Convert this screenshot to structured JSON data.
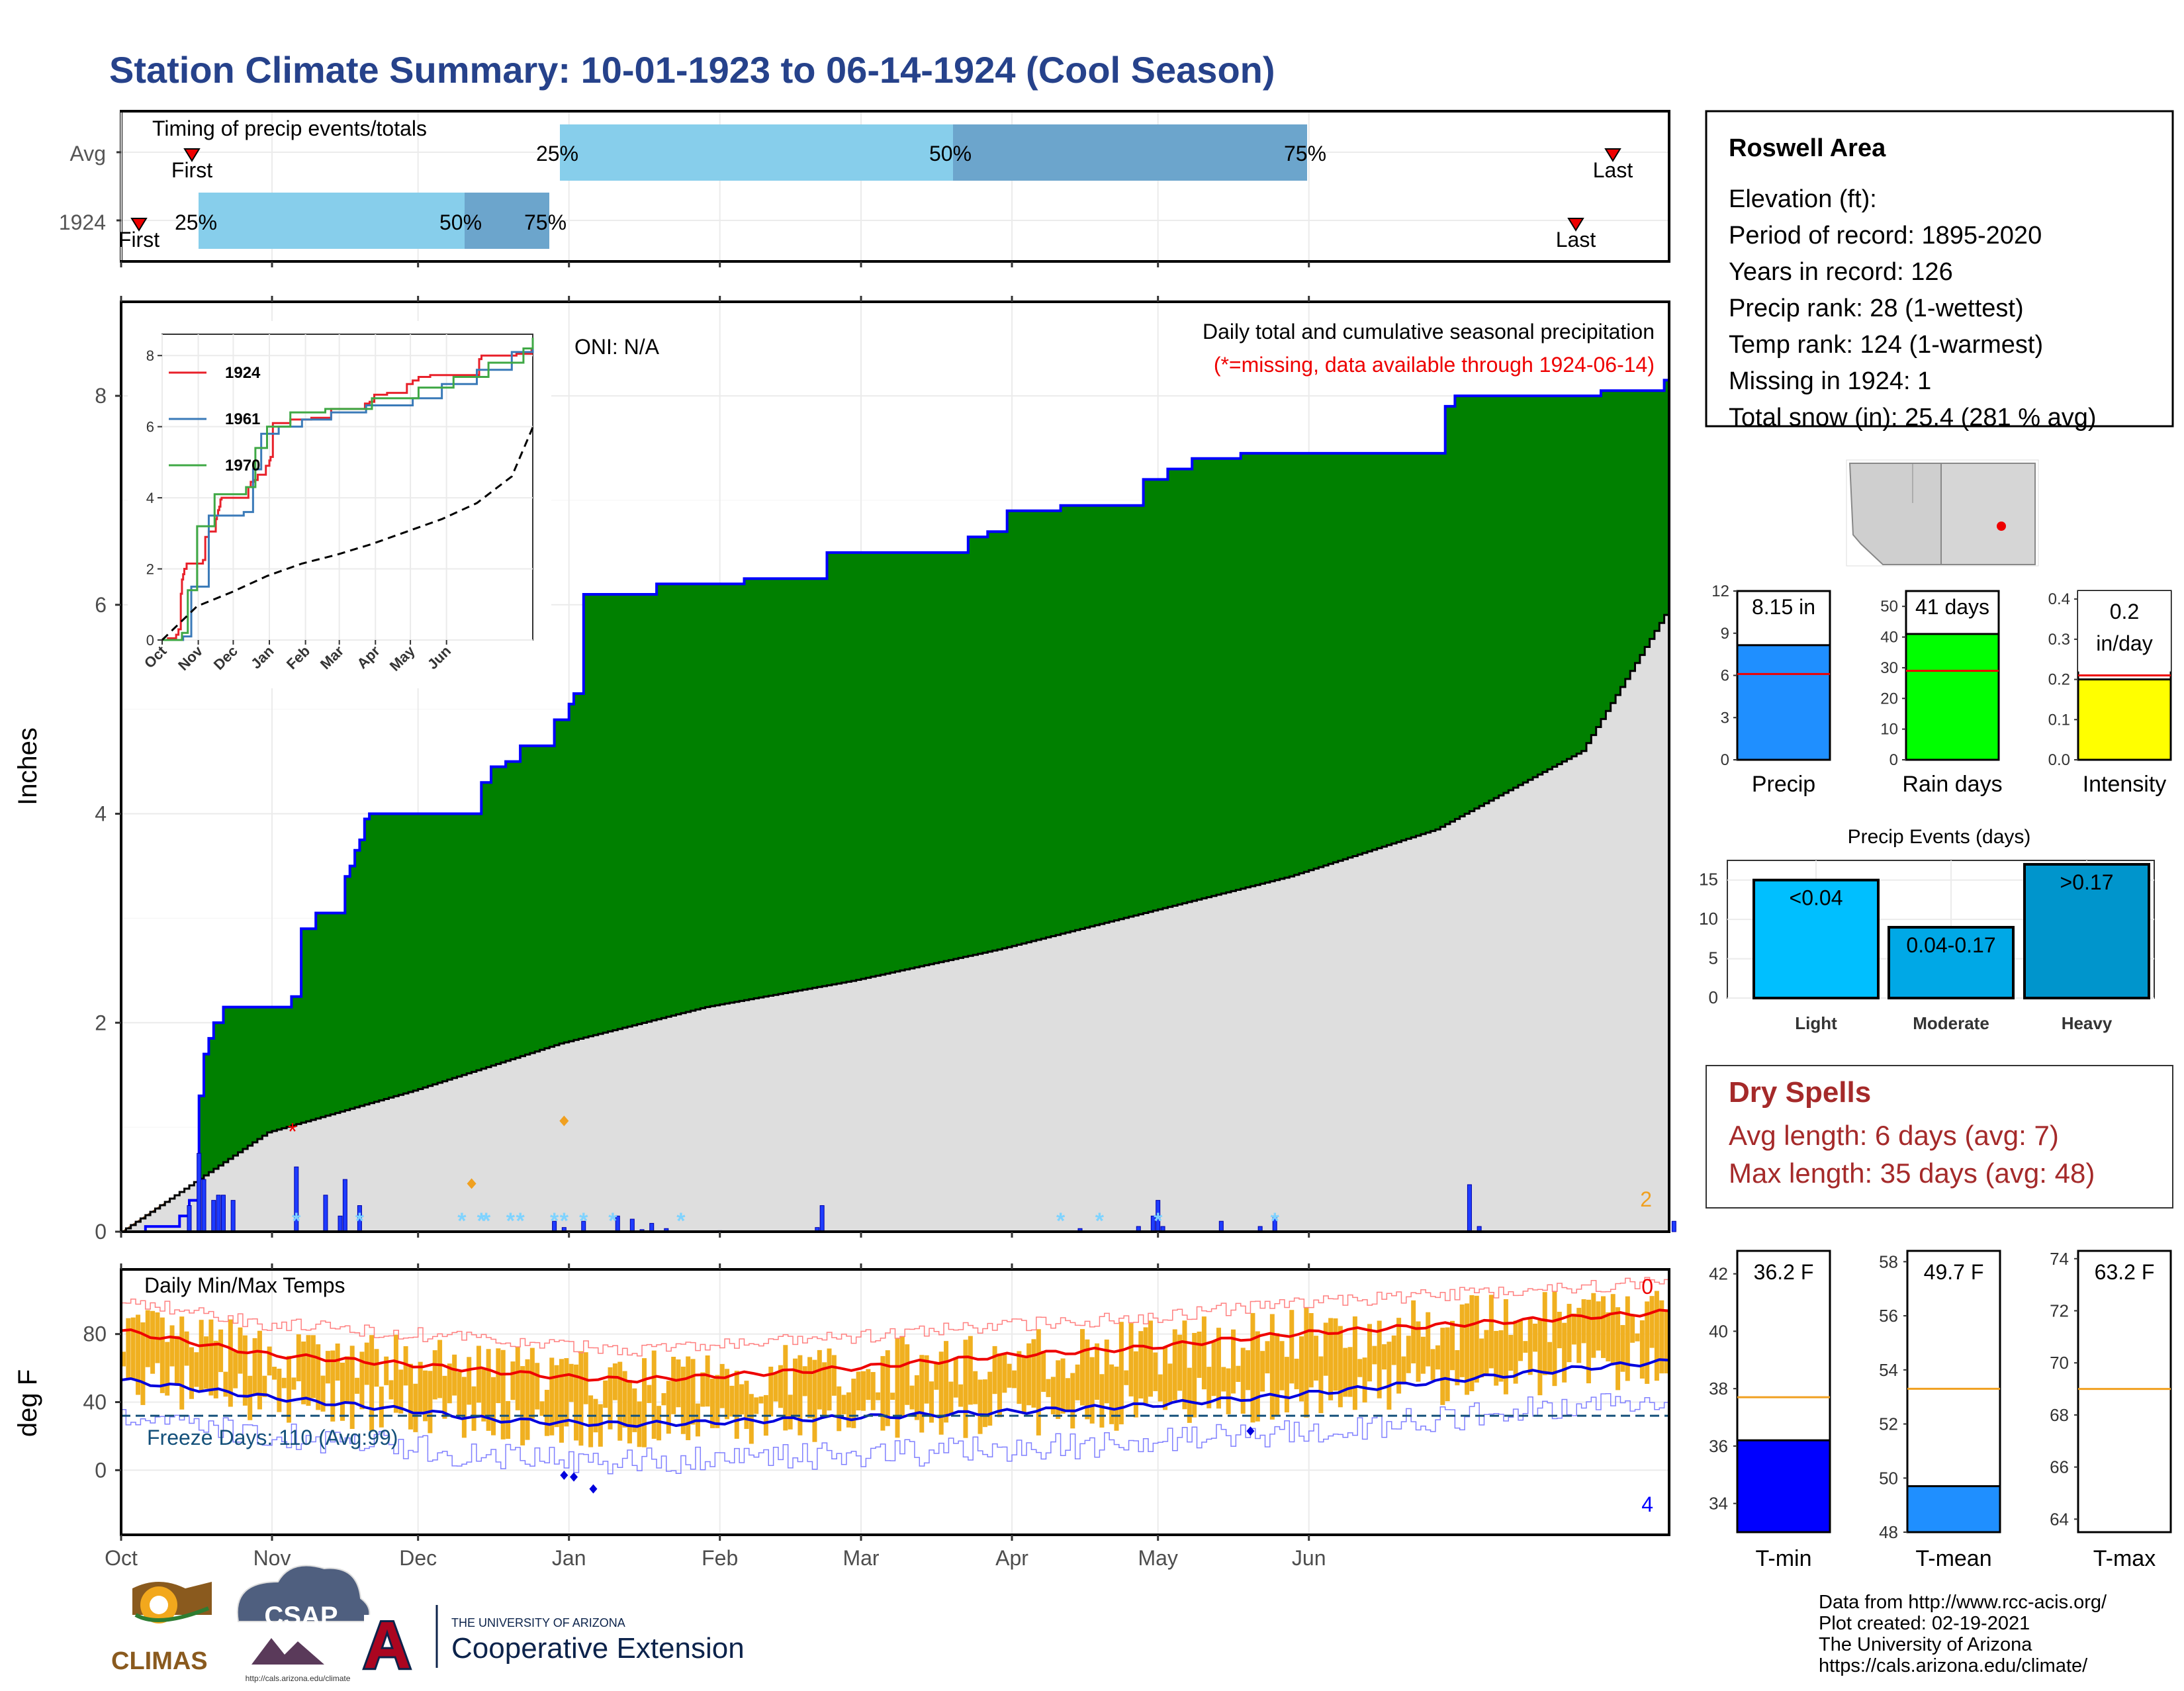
{
  "title": "Station Climate Summary: 10-01-1923 to 06-14-1924 (Cool Season)",
  "timing": {
    "panel_label": "Timing of precip events/totals",
    "rows": [
      {
        "label": "Avg",
        "first": "Oct 12",
        "p25": "Dec 21",
        "p50": "Feb 20",
        "p75": "Apr 14",
        "last": "Jun 10"
      },
      {
        "label": "1924",
        "first": "Oct 3",
        "p25": "Oct 14",
        "p50": "Nov 24",
        "p75": "Dec 10",
        "last": "May 31"
      }
    ],
    "first_label": "First",
    "last_label": "Last",
    "pct_labels": [
      "25%",
      "50%",
      "75%"
    ]
  },
  "main_panel": {
    "ylabel": "Inches",
    "oni_text": "ONI: N/A",
    "caption": "Daily total and cumulative seasonal precipitation",
    "missing_note": "(*=missing, data available through 1924-06-14)",
    "corner_count": "2",
    "yticks": [
      0,
      2,
      4,
      6,
      8
    ]
  },
  "temp_panel": {
    "label": "Daily Min/Max Temps",
    "ylabel": "deg F",
    "freeze_text": "Freeze Days: 110 (Avg:99)",
    "count_top": "0",
    "count_bottom": "4",
    "yticks": [
      0,
      40,
      80
    ]
  },
  "months": [
    "Oct",
    "Nov",
    "Dec",
    "Jan",
    "Feb",
    "Mar",
    "Apr",
    "May",
    "Jun"
  ],
  "inset": {
    "yticks": [
      0,
      2,
      4,
      6,
      8
    ],
    "months": [
      "Oct",
      "Nov",
      "Dec",
      "Jan",
      "Feb",
      "Mar",
      "Apr",
      "May",
      "Jun"
    ],
    "legend": [
      {
        "name": "1924",
        "color": "#e8202a"
      },
      {
        "name": "1961",
        "color": "#3a7ab8"
      },
      {
        "name": "1970",
        "color": "#3fa845"
      }
    ]
  },
  "station": {
    "name": "Roswell Area",
    "lines": [
      "Elevation (ft):",
      "Period of record: 1895-2020",
      "Years in record: 126",
      "Precip rank: 28 (1-wettest)",
      "Temp rank: 124 (1-warmest)",
      "Missing in 1924: 1",
      "Total snow (in): 25.4 (281 % avg)"
    ]
  },
  "mini_bars": {
    "precip": {
      "label": "Precip",
      "value": 8.15,
      "text": "8.15 in",
      "avg": 6.1,
      "ymax": 12,
      "ticks": [
        0,
        3,
        6,
        9,
        12
      ],
      "color": "#1f8fff"
    },
    "rain_days": {
      "label": "Rain days",
      "value": 41,
      "text": "41 days",
      "avg": 29,
      "ymax": 55,
      "ticks": [
        0,
        10,
        20,
        30,
        40,
        50
      ],
      "color": "#00ff00"
    },
    "intensity": {
      "label": "Intensity",
      "value": 0.2,
      "text1": "0.2",
      "text2": "in/day",
      "avg": 0.21,
      "ymax": 0.42,
      "ticks": [
        0.0,
        0.1,
        0.2,
        0.3,
        0.4
      ],
      "color": "#ffff00"
    }
  },
  "events": {
    "title": "Precip Events (days)",
    "bars": [
      {
        "cat": "Light",
        "label": "<0.04",
        "value": 15,
        "color": "#00bfff"
      },
      {
        "cat": "Moderate",
        "label": "0.04-0.17",
        "value": 9,
        "color": "#00a8e6"
      },
      {
        "cat": "Heavy",
        "label": ">0.17",
        "value": 17,
        "color": "#0095cc"
      }
    ],
    "ticks": [
      0,
      5,
      10,
      15
    ]
  },
  "dry_spells": {
    "title": "Dry Spells",
    "avg_line": "Avg length: 6 days (avg: 7)",
    "max_line": "Max length: 35 days (avg: 48)"
  },
  "temp_bars": [
    {
      "label": "T-min",
      "text": "36.2 F",
      "value": 36.2,
      "avg": 37.7,
      "ymin": 33,
      "ymax": 42.8,
      "ticks": [
        34,
        36,
        38,
        40,
        42
      ],
      "color": "#0000ff"
    },
    {
      "label": "T-mean",
      "text": "49.7 F",
      "value": 49.7,
      "avg": 53.3,
      "ymin": 48,
      "ymax": 58.4,
      "ticks": [
        48,
        50,
        52,
        54,
        56,
        58
      ],
      "color": "#1f8fff"
    },
    {
      "label": "T-max",
      "text": "63.2 F",
      "value": 63.2,
      "avg": 69.0,
      "ymin": 63.5,
      "ymax": 74.3,
      "ticks": [
        64,
        66,
        68,
        70,
        72,
        74
      ],
      "color": "#ffffff"
    }
  ],
  "credits": [
    "Data from http://www.rcc-acis.org/",
    "Plot created: 02-19-2021",
    "The University of Arizona",
    "https://cals.arizona.edu/climate/"
  ],
  "logos": {
    "climas": "CLIMAS",
    "csap": "CSAP",
    "csap_url": "http://cals.arizona.edu/climate",
    "ua_small": "THE UNIVERSITY OF ARIZONA",
    "ua_big": "Cooperative Extension",
    "ua_letter": "A"
  },
  "chart_data": {
    "type": "area",
    "title": "Station Climate Summary: 10-01-1923 to 06-14-1924 (Cool Season)",
    "ylabel": "Inches",
    "ylim": [
      0,
      8.9
    ],
    "cumulative_1924": [
      [
        0,
        0
      ],
      [
        5,
        0.05
      ],
      [
        12,
        0.15
      ],
      [
        14,
        0.3
      ],
      [
        16,
        1.3
      ],
      [
        17,
        1.7
      ],
      [
        18,
        1.85
      ],
      [
        19,
        2.0
      ],
      [
        21,
        2.15
      ],
      [
        35,
        2.25
      ],
      [
        37,
        2.9
      ],
      [
        40,
        3.05
      ],
      [
        46,
        3.4
      ],
      [
        47,
        3.5
      ],
      [
        48,
        3.65
      ],
      [
        49,
        3.75
      ],
      [
        50,
        3.95
      ],
      [
        51,
        4.0
      ],
      [
        72,
        4.0
      ],
      [
        74,
        4.3
      ],
      [
        76,
        4.45
      ],
      [
        79,
        4.5
      ],
      [
        82,
        4.65
      ],
      [
        87,
        4.65
      ],
      [
        89,
        4.9
      ],
      [
        92,
        5.05
      ],
      [
        93,
        5.15
      ],
      [
        95,
        6.1
      ],
      [
        110,
        6.2
      ],
      [
        128,
        6.25
      ],
      [
        142,
        6.25
      ],
      [
        145,
        6.5
      ],
      [
        166,
        6.5
      ],
      [
        174,
        6.65
      ],
      [
        178,
        6.7
      ],
      [
        182,
        6.9
      ],
      [
        193,
        6.95
      ],
      [
        210,
        7.2
      ],
      [
        215,
        7.3
      ],
      [
        220,
        7.4
      ],
      [
        230,
        7.45
      ],
      [
        270,
        7.45
      ],
      [
        272,
        7.9
      ],
      [
        274,
        8.0
      ],
      [
        304,
        8.05
      ],
      [
        317,
        8.15
      ],
      [
        318,
        8.15
      ]
    ],
    "average_cumulative": [
      [
        0,
        0
      ],
      [
        30,
        0.95
      ],
      [
        60,
        1.35
      ],
      [
        90,
        1.8
      ],
      [
        120,
        2.15
      ],
      [
        150,
        2.4
      ],
      [
        180,
        2.7
      ],
      [
        210,
        3.05
      ],
      [
        240,
        3.4
      ],
      [
        270,
        3.85
      ],
      [
        300,
        4.6
      ],
      [
        318,
        5.98
      ]
    ],
    "daily_precip": [
      [
        14,
        0.25
      ],
      [
        16,
        0.75
      ],
      [
        17,
        0.5
      ],
      [
        19,
        0.3
      ],
      [
        20,
        0.35
      ],
      [
        21,
        0.35
      ],
      [
        23,
        0.3
      ],
      [
        36,
        0.62
      ],
      [
        42,
        0.35
      ],
      [
        45,
        0.15
      ],
      [
        46,
        0.5
      ],
      [
        49,
        0.25
      ],
      [
        89,
        0.1
      ],
      [
        91,
        0.04
      ],
      [
        95,
        0.1
      ],
      [
        102,
        0.15
      ],
      [
        105,
        0.12
      ],
      [
        107,
        0.02
      ],
      [
        109,
        0.08
      ],
      [
        112,
        0.03
      ],
      [
        123,
        0.01
      ],
      [
        143,
        0.04
      ],
      [
        144,
        0.25
      ],
      [
        197,
        0.03
      ],
      [
        209,
        0.05
      ],
      [
        212,
        0.15
      ],
      [
        213,
        0.3
      ],
      [
        214,
        0.05
      ],
      [
        226,
        0.1
      ],
      [
        234,
        0.05
      ],
      [
        237,
        0.15
      ],
      [
        277,
        0.45
      ],
      [
        279,
        0.05
      ],
      [
        319,
        0.1
      ]
    ],
    "inset_series": [
      {
        "name": "1924",
        "color": "#e8202a"
      },
      {
        "name": "1961",
        "color": "#3a7ab8"
      },
      {
        "name": "1970",
        "color": "#3fa845"
      }
    ],
    "temp_smoothed_max": [
      [
        0,
        82
      ],
      [
        30,
        68
      ],
      [
        60,
        62
      ],
      [
        90,
        55
      ],
      [
        105,
        53
      ],
      [
        120,
        55
      ],
      [
        150,
        60
      ],
      [
        180,
        67
      ],
      [
        210,
        72
      ],
      [
        240,
        80
      ],
      [
        270,
        85
      ],
      [
        300,
        90
      ],
      [
        318,
        93
      ]
    ],
    "temp_smoothed_min": [
      [
        0,
        53
      ],
      [
        30,
        43
      ],
      [
        60,
        35
      ],
      [
        75,
        30
      ],
      [
        90,
        28
      ],
      [
        105,
        27
      ],
      [
        120,
        28
      ],
      [
        150,
        31
      ],
      [
        180,
        34
      ],
      [
        210,
        38
      ],
      [
        240,
        44
      ],
      [
        270,
        52
      ],
      [
        300,
        60
      ],
      [
        318,
        64
      ]
    ],
    "freeze_threshold": 32
  }
}
